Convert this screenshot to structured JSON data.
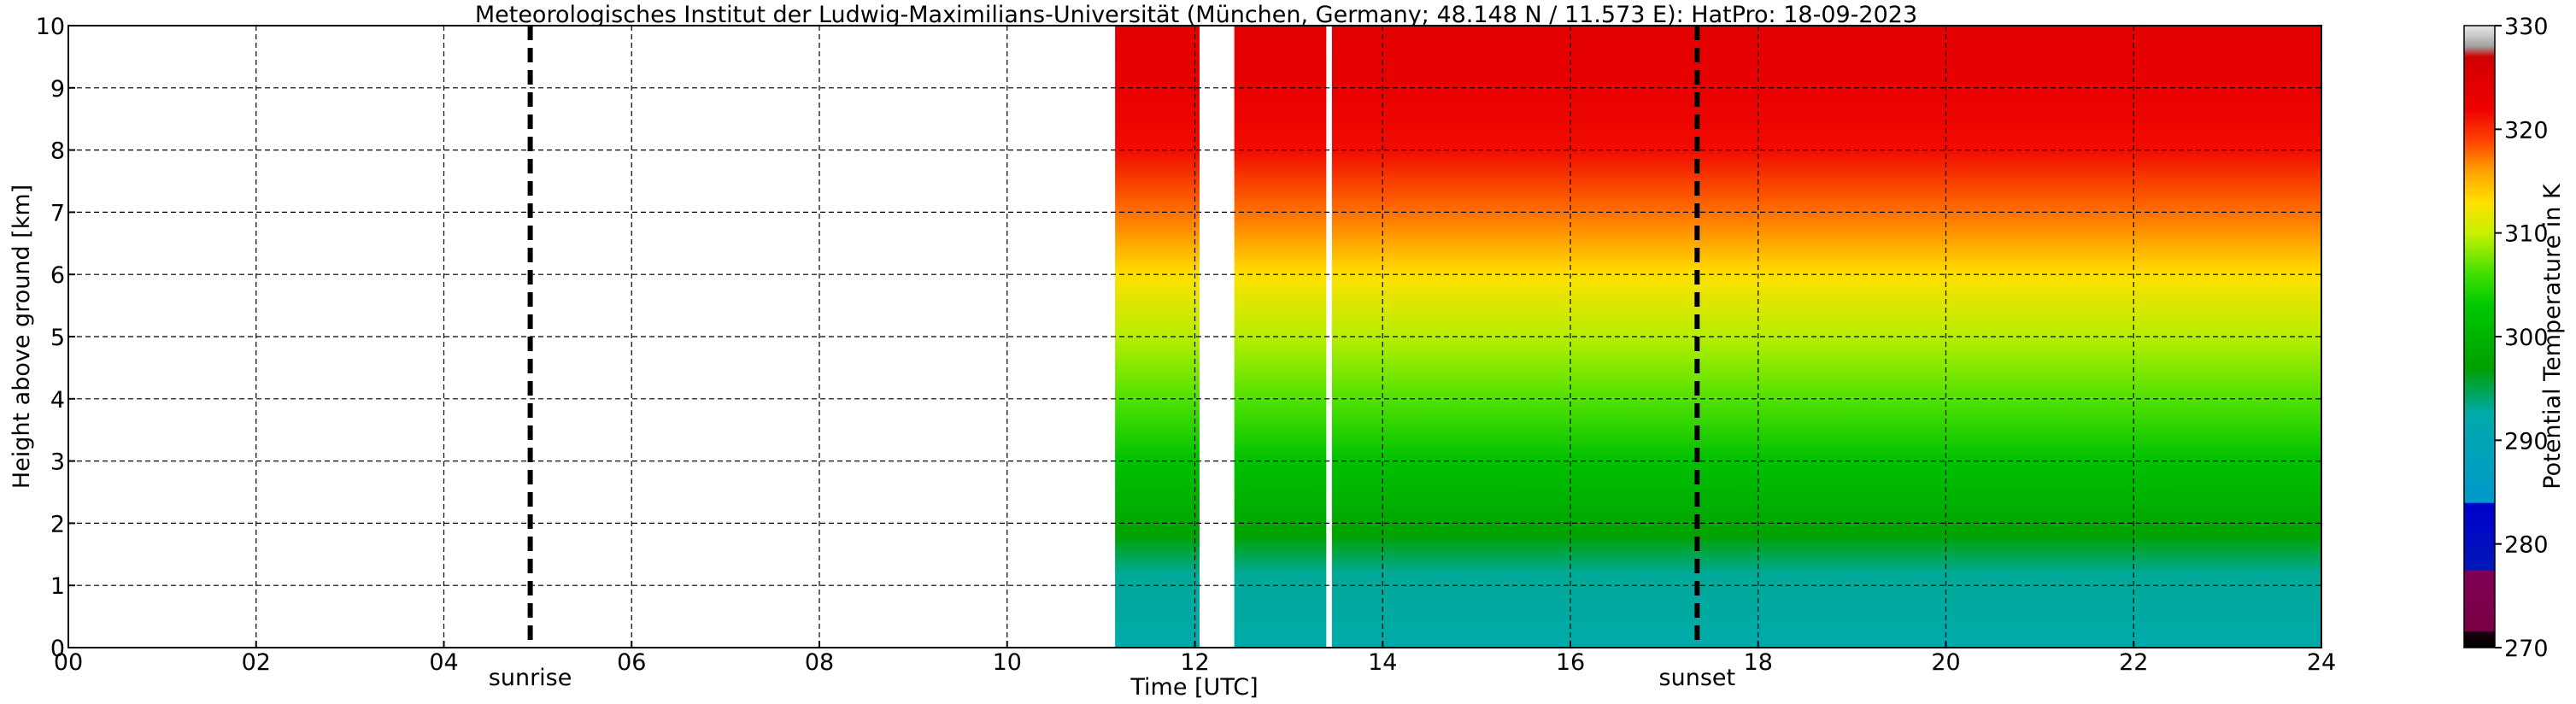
{
  "chart_data": {
    "type": "heatmap",
    "title": "Meteorologisches Institut der Ludwig-Maximilians-Universität (München, Germany; 48.148 N / 11.573 E):    HatPro: 18-09-2023",
    "xlabel": "Time [UTC]",
    "ylabel": "Height above ground [km]",
    "colorbar_label": "Potential Temperature in K",
    "xlim": [
      0,
      24
    ],
    "ylim": [
      0,
      10
    ],
    "x_ticks": [
      {
        "value": 0,
        "label": "00"
      },
      {
        "value": 2,
        "label": "02"
      },
      {
        "value": 4,
        "label": "04"
      },
      {
        "value": 6,
        "label": "06"
      },
      {
        "value": 8,
        "label": "08"
      },
      {
        "value": 10,
        "label": "10"
      },
      {
        "value": 12,
        "label": "12"
      },
      {
        "value": 14,
        "label": "14"
      },
      {
        "value": 16,
        "label": "16"
      },
      {
        "value": 18,
        "label": "18"
      },
      {
        "value": 20,
        "label": "20"
      },
      {
        "value": 22,
        "label": "22"
      },
      {
        "value": 24,
        "label": "24"
      }
    ],
    "y_ticks": [
      {
        "value": 0,
        "label": "0"
      },
      {
        "value": 1,
        "label": "1"
      },
      {
        "value": 2,
        "label": "2"
      },
      {
        "value": 3,
        "label": "3"
      },
      {
        "value": 4,
        "label": "4"
      },
      {
        "value": 5,
        "label": "5"
      },
      {
        "value": 6,
        "label": "6"
      },
      {
        "value": 7,
        "label": "7"
      },
      {
        "value": 8,
        "label": "8"
      },
      {
        "value": 9,
        "label": "9"
      },
      {
        "value": 10,
        "label": "10"
      }
    ],
    "grid": true,
    "events": [
      {
        "time": 4.92,
        "label": "sunrise"
      },
      {
        "time": 17.35,
        "label": "sunset"
      }
    ],
    "data_segments": [
      [
        11.15,
        12.05
      ],
      [
        12.42,
        13.4
      ],
      [
        13.46,
        24.0
      ]
    ],
    "colorbar": {
      "vmin": 270,
      "vmax": 330,
      "ticks": [
        270,
        280,
        290,
        300,
        310,
        320,
        330
      ],
      "stops": [
        {
          "value": 270.0,
          "color": "#000000"
        },
        {
          "value": 271.5,
          "color": "#1a0010"
        },
        {
          "value": 271.6,
          "color": "#7a0044"
        },
        {
          "value": 277.4,
          "color": "#800055"
        },
        {
          "value": 277.5,
          "color": "#0018b8"
        },
        {
          "value": 283.9,
          "color": "#0000cc"
        },
        {
          "value": 284.0,
          "color": "#0099cc"
        },
        {
          "value": 292.5,
          "color": "#00aaaa"
        },
        {
          "value": 297.0,
          "color": "#00a000"
        },
        {
          "value": 303.0,
          "color": "#00c800"
        },
        {
          "value": 306.0,
          "color": "#40e000"
        },
        {
          "value": 310.0,
          "color": "#c8f000"
        },
        {
          "value": 313.0,
          "color": "#ffe000"
        },
        {
          "value": 316.0,
          "color": "#ffa000"
        },
        {
          "value": 319.0,
          "color": "#ff4000"
        },
        {
          "value": 322.0,
          "color": "#ee0000"
        },
        {
          "value": 327.0,
          "color": "#d00000"
        },
        {
          "value": 328.0,
          "color": "#a0a0a0"
        },
        {
          "value": 329.0,
          "color": "#c8c8c8"
        },
        {
          "value": 330.0,
          "color": "#e8e8e8"
        }
      ]
    },
    "theta_profile": [
      {
        "height": 0.0,
        "theta": 292.5
      },
      {
        "height": 1.2,
        "theta": 293.0
      },
      {
        "height": 1.8,
        "theta": 297.5
      },
      {
        "height": 3.0,
        "theta": 302.0
      },
      {
        "height": 4.0,
        "theta": 306.5
      },
      {
        "height": 5.0,
        "theta": 309.5
      },
      {
        "height": 6.0,
        "theta": 313.0
      },
      {
        "height": 7.0,
        "theta": 317.5
      },
      {
        "height": 8.0,
        "theta": 321.5
      },
      {
        "height": 9.0,
        "theta": 323.0
      },
      {
        "height": 10.0,
        "theta": 324.0
      }
    ]
  }
}
